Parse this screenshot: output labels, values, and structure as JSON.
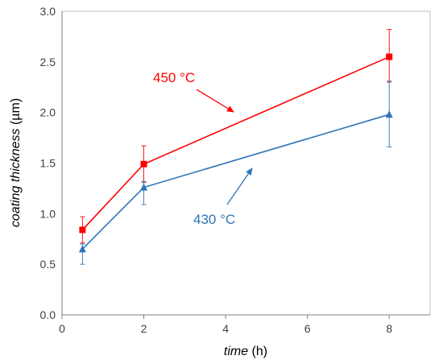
{
  "chart_data": {
    "type": "line",
    "xlabel_italic": "time",
    "xlabel_unit": " (h)",
    "ylabel_italic": "coating thickness",
    "ylabel_unit": " (µm)",
    "xlim": [
      0,
      9
    ],
    "ylim": [
      0,
      3.0
    ],
    "xticks": [
      0,
      2,
      4,
      6,
      8
    ],
    "yticks": [
      0.0,
      0.5,
      1.0,
      1.5,
      2.0,
      2.5,
      3.0
    ],
    "ytick_labels": [
      "0.0",
      "0.5",
      "1.0",
      "1.5",
      "2.0",
      "2.5",
      "3.0"
    ],
    "grid": false,
    "series": [
      {
        "name": "450 °C",
        "color": "#ff0000",
        "marker": "square",
        "x": [
          0.5,
          2,
          8
        ],
        "y": [
          0.84,
          1.49,
          2.55
        ],
        "error_plus": [
          0.13,
          0.18,
          0.27
        ],
        "error_minus": [
          0.13,
          0.18,
          0.25
        ]
      },
      {
        "name": "430 °C",
        "color": "#2e75b6",
        "marker": "triangle",
        "x": [
          0.5,
          2,
          8
        ],
        "y": [
          0.65,
          1.26,
          1.98
        ],
        "error_plus": [
          0.05,
          0.06,
          0.33
        ],
        "error_minus": [
          0.15,
          0.17,
          0.32
        ]
      }
    ],
    "annotations": [
      {
        "text": "450 °C",
        "color": "#ff0000",
        "arrow_from": [
          4.1,
          2.0
        ],
        "arrow_to": [
          4.25,
          2.0
        ]
      },
      {
        "text": "430 °C",
        "color": "#2e75b6",
        "arrow_from": [
          4.15,
          1.13
        ],
        "arrow_to": [
          4.65,
          1.45
        ]
      }
    ]
  }
}
